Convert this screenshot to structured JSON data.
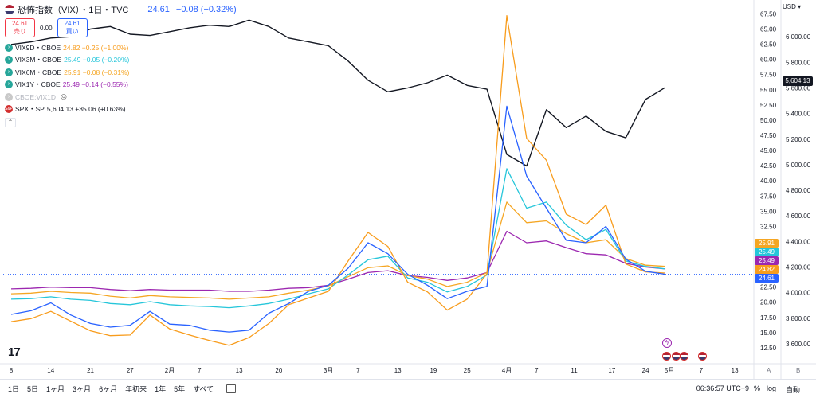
{
  "header": {
    "title": "恐怖指数（VIX）・1日・TVC",
    "price": "24.61",
    "change": "−0.08 (−0.32%)",
    "sell_price": "24.61",
    "sell_label": "売り",
    "spread": "0.00",
    "buy_price": "24.61",
    "buy_label": "買い"
  },
  "legend": [
    {
      "name": "VIX9D・CBOE",
      "vals": "24.82 −0.25 (−1.00%)",
      "color": "#f89c1c"
    },
    {
      "name": "VIX3M・CBOE",
      "vals": "25.49 −0.05 (−0.20%)",
      "color": "#26c6da"
    },
    {
      "name": "VIX6M・CBOE",
      "vals": "25.91 −0.08 (−0.31%)",
      "color": "#f5a623"
    },
    {
      "name": "VIX1Y・CBOE",
      "vals": "25.49 −0.14 (−0.55%)",
      "color": "#9c27b0"
    }
  ],
  "hidden_series": "CBOE:VIX1D",
  "spx_legend": {
    "name": "SPX・SP",
    "vals": "5,604.13 +35.06 (+0.63%)"
  },
  "currency": "USD",
  "spx_last": "5,604.13",
  "pills": [
    {
      "label": "25.91",
      "value": 25.91,
      "color": "#f5a623"
    },
    {
      "label": "25.49",
      "value": 25.49,
      "color": "#26c6da"
    },
    {
      "label": "25.49",
      "value": 25.49,
      "color": "#9c27b0"
    },
    {
      "label": "24.82",
      "value": 24.82,
      "color": "#f89c1c"
    },
    {
      "label": "24.61",
      "value": 24.61,
      "color": "#2962ff"
    }
  ],
  "bottom_bar": {
    "ranges": [
      "1日",
      "5日",
      "1ヶ月",
      "3ヶ月",
      "6ヶ月",
      "年初来",
      "1年",
      "5年",
      "すべて"
    ],
    "clock": "06:36:57 UTC+9",
    "pct": "%",
    "log": "log",
    "auto": "自動"
  },
  "axis_badges": [
    "A",
    "B"
  ],
  "chart_data": {
    "type": "line",
    "x": [
      "1/8",
      "1/10",
      "1/14",
      "1/17",
      "1/21",
      "1/24",
      "1/28",
      "1/31",
      "2/4",
      "2/7",
      "2/11",
      "2/14",
      "2/18",
      "2/21",
      "2/25",
      "2/28",
      "3/4",
      "3/7",
      "3/11",
      "3/14",
      "3/18",
      "3/21",
      "3/25",
      "3/28",
      "4/1",
      "4/4",
      "4/8",
      "4/9",
      "4/10",
      "4/14",
      "4/17",
      "4/22",
      "4/25",
      "4/30"
    ],
    "x_ticks": [
      {
        "label": "8",
        "pos": 0.0
      },
      {
        "label": "14",
        "pos": 2.0
      },
      {
        "label": "21",
        "pos": 4.0
      },
      {
        "label": "27",
        "pos": 6.0
      },
      {
        "label": "2月",
        "pos": 8.0
      },
      {
        "label": "7",
        "pos": 9.5
      },
      {
        "label": "13",
        "pos": 11.5
      },
      {
        "label": "20",
        "pos": 13.5
      },
      {
        "label": "3月",
        "pos": 16.0
      },
      {
        "label": "7",
        "pos": 17.5
      },
      {
        "label": "13",
        "pos": 19.5
      },
      {
        "label": "19",
        "pos": 21.3
      },
      {
        "label": "25",
        "pos": 23.0
      },
      {
        "label": "4月",
        "pos": 25.0
      },
      {
        "label": "7",
        "pos": 26.5
      },
      {
        "label": "11",
        "pos": 28.4
      },
      {
        "label": "17",
        "pos": 30.3
      },
      {
        "label": "24",
        "pos": 32.0
      },
      {
        "label": "5月",
        "pos": 33.2
      },
      {
        "label": "7",
        "pos": 34.8
      },
      {
        "label": "13",
        "pos": 36.5
      }
    ],
    "x_range": [
      0,
      37.3
    ],
    "y_left": {
      "range": [
        10.0,
        69.0
      ],
      "ticks": [
        12.5,
        15.0,
        17.5,
        20.0,
        22.5,
        25.0,
        27.5,
        30.0,
        32.5,
        35.0,
        37.5,
        40.0,
        42.5,
        45.0,
        47.5,
        50.0,
        52.5,
        55.0,
        57.5,
        60.0,
        62.5,
        65.0,
        67.5
      ]
    },
    "y_right": {
      "range": [
        3450,
        6250
      ],
      "ticks": [
        3600,
        3800,
        4000,
        4200,
        4400,
        4600,
        4800,
        5000,
        5200,
        5400,
        5600,
        5800,
        6000
      ]
    },
    "series": [
      {
        "name": "SPX・SP",
        "axis": "right",
        "color": "#131722",
        "values": [
          5940,
          5960,
          5990,
          6000,
          6060,
          6080,
          6020,
          6010,
          6040,
          6070,
          6090,
          6080,
          6130,
          6080,
          5990,
          5960,
          5930,
          5810,
          5660,
          5570,
          5600,
          5640,
          5700,
          5620,
          5590,
          5080,
          4990,
          5430,
          5290,
          5380,
          5260,
          5210,
          5510,
          5604.13
        ]
      },
      {
        "name": "VIX1Y・CBOE",
        "axis": "left",
        "color": "#9c27b0",
        "values": [
          22.2,
          22.3,
          22.5,
          22.4,
          22.4,
          22.1,
          21.9,
          22.1,
          22.0,
          22.0,
          22.0,
          21.8,
          21.8,
          22.0,
          22.3,
          22.4,
          22.8,
          23.8,
          24.9,
          25.2,
          24.4,
          24.1,
          23.6,
          24.0,
          24.9,
          31.7,
          29.8,
          30.1,
          29.0,
          28.0,
          27.8,
          26.4,
          25.8,
          25.49
        ]
      },
      {
        "name": "VIX6M・CBOE",
        "axis": "left",
        "color": "#f5a623",
        "values": [
          21.4,
          21.5,
          21.8,
          21.6,
          21.5,
          21.0,
          20.7,
          21.1,
          20.9,
          20.8,
          20.7,
          20.5,
          20.7,
          20.9,
          21.5,
          22.0,
          22.7,
          24.2,
          25.7,
          26.0,
          24.4,
          23.8,
          22.6,
          23.3,
          24.9,
          36.5,
          33.1,
          33.4,
          31.3,
          29.8,
          30.3,
          27.2,
          26.1,
          25.91
        ]
      },
      {
        "name": "VIX3M・CBOE",
        "axis": "left",
        "color": "#26c6da",
        "values": [
          20.5,
          20.6,
          20.9,
          20.5,
          20.3,
          19.8,
          19.6,
          20.1,
          19.6,
          19.4,
          19.3,
          19.1,
          19.4,
          19.8,
          20.5,
          21.4,
          22.2,
          24.5,
          27.0,
          27.6,
          24.0,
          23.3,
          21.7,
          22.6,
          24.5,
          42.0,
          35.5,
          36.5,
          32.7,
          30.3,
          32.0,
          26.8,
          25.9,
          25.49
        ]
      },
      {
        "name": "VIX9D・CBOE",
        "axis": "left",
        "color": "#f89c1c",
        "values": [
          16.8,
          17.3,
          18.5,
          16.9,
          15.3,
          14.5,
          14.6,
          17.9,
          15.6,
          14.6,
          13.7,
          12.9,
          14.2,
          16.5,
          19.6,
          20.7,
          21.8,
          26.8,
          31.5,
          29.2,
          23.3,
          21.7,
          18.7,
          20.5,
          24.7,
          67.2,
          47.0,
          43.4,
          34.5,
          32.8,
          36.0,
          26.3,
          25.0,
          24.82
        ]
      },
      {
        "name": "恐怖指数（VIX）",
        "axis": "left",
        "color": "#2962ff",
        "values": [
          18.0,
          18.6,
          19.9,
          17.9,
          16.5,
          15.9,
          16.2,
          18.5,
          16.4,
          16.2,
          15.4,
          15.1,
          15.4,
          18.2,
          19.8,
          21.8,
          22.8,
          25.6,
          29.8,
          28.0,
          24.6,
          22.8,
          20.6,
          21.8,
          22.6,
          52.3,
          40.8,
          35.5,
          30.2,
          29.8,
          32.5,
          27.1,
          25.1,
          24.61
        ]
      }
    ],
    "legend_placement": "top-left",
    "grid": false
  }
}
